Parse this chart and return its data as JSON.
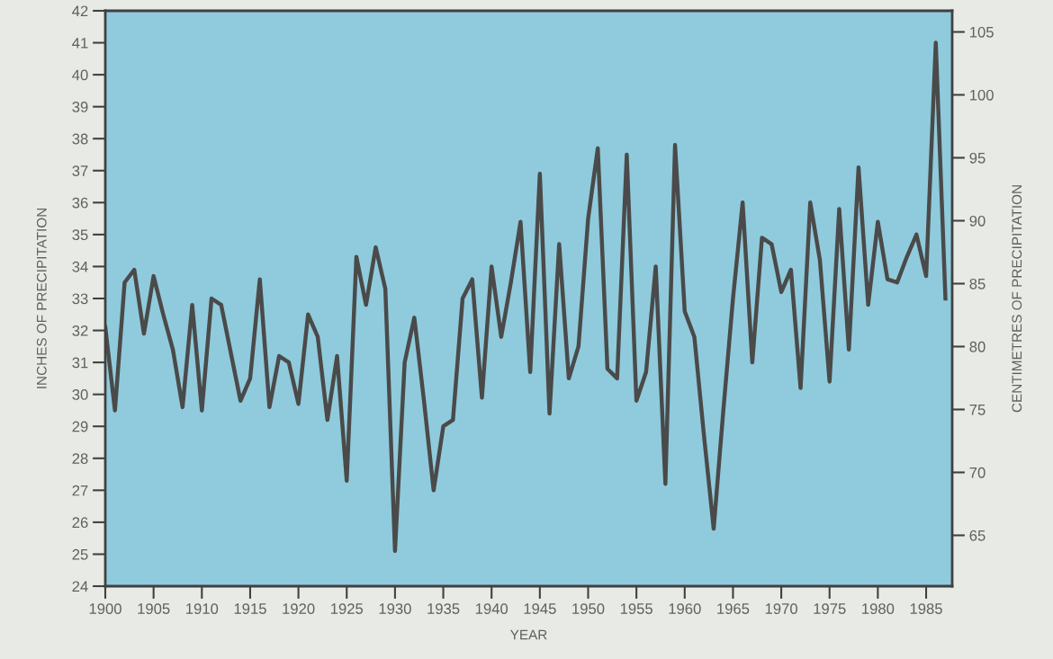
{
  "chart_data": {
    "type": "line",
    "xlabel": "YEAR",
    "ylabel": "INCHES OF PRECIPITATION",
    "y2label": "CENTIMETRES OF PRECIPITATION",
    "x": [
      1900,
      1901,
      1902,
      1903,
      1904,
      1905,
      1906,
      1907,
      1908,
      1909,
      1910,
      1911,
      1912,
      1913,
      1914,
      1915,
      1916,
      1917,
      1918,
      1919,
      1920,
      1921,
      1922,
      1923,
      1924,
      1925,
      1926,
      1927,
      1928,
      1929,
      1930,
      1931,
      1932,
      1933,
      1934,
      1935,
      1936,
      1937,
      1938,
      1939,
      1940,
      1941,
      1942,
      1943,
      1944,
      1945,
      1946,
      1947,
      1948,
      1949,
      1950,
      1951,
      1952,
      1953,
      1954,
      1955,
      1956,
      1957,
      1958,
      1959,
      1960,
      1961,
      1962,
      1963,
      1964,
      1965,
      1966,
      1967,
      1968,
      1969,
      1970,
      1971,
      1972,
      1973,
      1974,
      1975,
      1976,
      1977,
      1978,
      1979,
      1980,
      1981,
      1982,
      1983,
      1984,
      1985,
      1986,
      1987
    ],
    "series": [
      {
        "color": "#4a4a4a",
        "values": [
          32.1,
          29.5,
          33.5,
          33.9,
          31.9,
          33.7,
          32.5,
          31.4,
          29.6,
          32.8,
          29.5,
          33.0,
          32.8,
          31.3,
          29.8,
          30.5,
          33.6,
          29.6,
          31.2,
          31.0,
          29.7,
          32.5,
          31.8,
          29.2,
          31.2,
          27.3,
          34.3,
          32.8,
          34.6,
          33.3,
          25.1,
          31.0,
          32.4,
          29.8,
          27.0,
          29.0,
          29.2,
          33.0,
          33.6,
          29.9,
          34.0,
          31.8,
          33.5,
          35.4,
          30.7,
          36.9,
          29.4,
          34.7,
          30.5,
          31.5,
          35.5,
          37.7,
          30.8,
          30.5,
          37.5,
          29.8,
          30.7,
          34.0,
          27.2,
          37.8,
          32.6,
          31.8,
          28.7,
          25.8,
          29.5,
          33.0,
          36.0,
          31.0,
          34.9,
          34.7,
          33.2,
          33.9,
          30.2,
          36.0,
          34.2,
          30.4,
          35.8,
          31.4,
          37.1,
          32.8,
          35.4,
          33.6,
          33.5,
          34.3,
          35.0,
          33.7,
          41.0,
          33.0
        ]
      }
    ],
    "xlim": [
      1900,
      1987.7
    ],
    "xticks": [
      1900,
      1905,
      1910,
      1915,
      1920,
      1925,
      1930,
      1935,
      1940,
      1945,
      1950,
      1955,
      1960,
      1965,
      1970,
      1975,
      1980,
      1985
    ],
    "ylim": [
      24,
      42
    ],
    "yticks": [
      24,
      25,
      26,
      27,
      28,
      29,
      30,
      31,
      32,
      33,
      34,
      35,
      36,
      37,
      38,
      39,
      40,
      41,
      42
    ],
    "y2lim": [
      60.96,
      106.68
    ],
    "y2ticks": [
      65,
      70,
      75,
      80,
      85,
      90,
      95,
      100,
      105
    ],
    "grid": false,
    "legend": false,
    "marker": "none",
    "line_style": "solid"
  }
}
